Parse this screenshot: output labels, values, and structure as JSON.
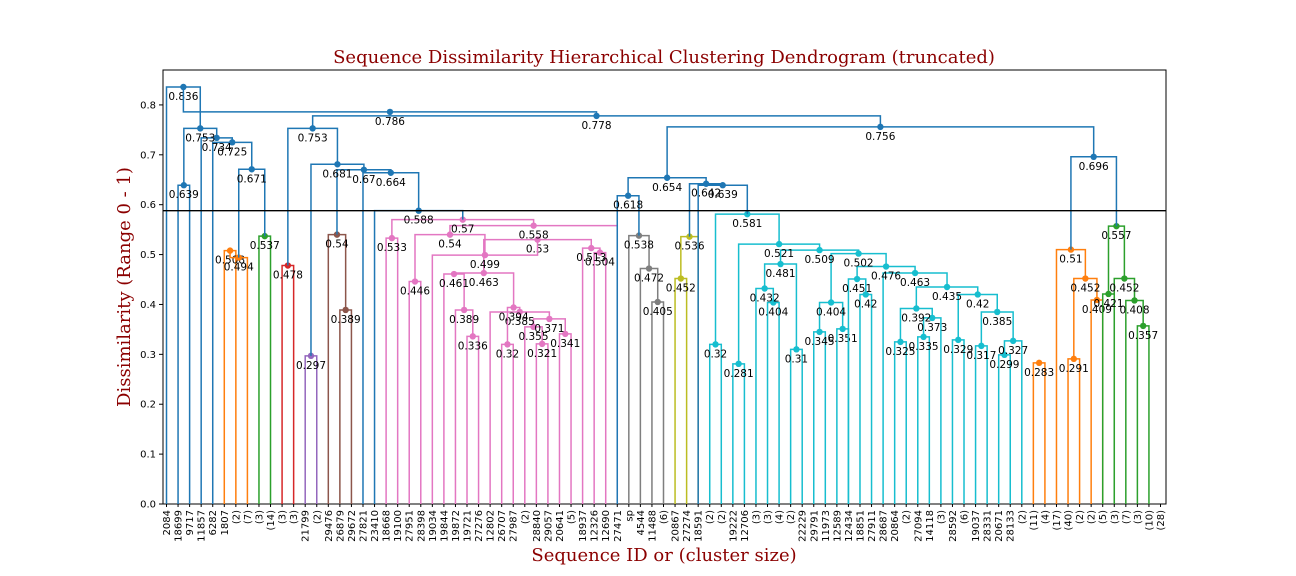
{
  "chart_data": {
    "type": "dendrogram",
    "title": "Sequence Dissimilarity Hierarchical Clustering Dendrogram (truncated)",
    "xlabel": "Sequence ID or (cluster size)",
    "ylabel": "Dissimilarity (Range 0 - 1)",
    "ylim": [
      0,
      0.87
    ],
    "yticks": [
      "0.0",
      "0.1",
      "0.2",
      "0.3",
      "0.4",
      "0.5",
      "0.6",
      "0.7",
      "0.8"
    ],
    "cut_line": 0.588,
    "leaves": [
      "2084",
      "18699",
      "9717",
      "11857",
      "6282",
      "1807",
      "(2)",
      "(7)",
      "(3)",
      "(14)",
      "(3)",
      "(3)",
      "21799",
      "(2)",
      "29476",
      "26879",
      "29672",
      "27821",
      "23410",
      "18668",
      "19100",
      "27951",
      "28398",
      "19034",
      "19844",
      "19872",
      "19721",
      "27276",
      "12802",
      "26707",
      "27987",
      "(2)",
      "28840",
      "29057",
      "20641",
      "(5)",
      "18937",
      "12326",
      "12690",
      "27471",
      "sp",
      "4544",
      "11488",
      "(6)",
      "20867",
      "27274",
      "18591",
      "(2)",
      "(2)",
      "19222",
      "12706",
      "(3)",
      "(3)",
      "(4)",
      "(2)",
      "22229",
      "29791",
      "11973",
      "12589",
      "12434",
      "18851",
      "27911",
      "28687",
      "20864",
      "(2)",
      "27094",
      "14118",
      "(3)",
      "28592",
      "(6)",
      "19037",
      "28331",
      "20671",
      "28133",
      "(2)",
      "(11)",
      "(4)",
      "(17)",
      "(40)",
      "(2)",
      "(2)",
      "(5)",
      "(3)",
      "(7)",
      "(3)",
      "(10)",
      "(28)"
    ],
    "colors": {
      "blue": "#1f77b4",
      "orange": "#ff7f0e",
      "green": "#2ca02c",
      "red": "#d62728",
      "purple": "#9467bd",
      "brown": "#8c564b",
      "pink": "#e377c2",
      "gray": "#7f7f7f",
      "olive": "#bcbd22",
      "cyan": "#17becf"
    },
    "merges": [
      [
        "L5",
        "L6",
        0.508,
        "orange",
        "A1"
      ],
      [
        "A1",
        "L7",
        0.494,
        "orange",
        "A2"
      ],
      [
        "L8",
        "L9",
        0.537,
        "green",
        "G1"
      ],
      [
        "A2",
        "G1",
        0.671,
        "blue",
        "B1"
      ],
      [
        "L4",
        "B1",
        0.725,
        "blue",
        "B2"
      ],
      [
        "L3",
        "B2",
        0.734,
        "blue",
        "B3"
      ],
      [
        "L1",
        "L2",
        0.639,
        "blue",
        "B4"
      ],
      [
        "B4",
        "B3",
        0.753,
        "blue",
        "B5"
      ],
      [
        "L0",
        "B5",
        0.836,
        "blue",
        "ROOT_L"
      ],
      [
        "L10",
        "L11",
        0.478,
        "red",
        "R1"
      ],
      [
        "L12",
        "L13",
        0.297,
        "purple",
        "P1"
      ],
      [
        "L15",
        "L16",
        0.389,
        "brown",
        "BR1"
      ],
      [
        "L14",
        "BR1",
        0.54,
        "brown",
        "BR2"
      ],
      [
        "L19",
        "L20",
        0.533,
        "pink",
        "K1"
      ],
      [
        "L21",
        "L22",
        0.446,
        "pink",
        "K2"
      ],
      [
        "L26",
        "L27",
        0.336,
        "pink",
        "K3"
      ],
      [
        "L25",
        "K3",
        0.389,
        "pink",
        "K4"
      ],
      [
        "L24",
        "K4",
        0.461,
        "pink",
        "K5"
      ],
      [
        "L29",
        "L30",
        0.32,
        "pink",
        "K6"
      ],
      [
        "L32",
        "L33",
        0.321,
        "pink",
        "K7"
      ],
      [
        "L31",
        "K7",
        0.355,
        "pink",
        "K8"
      ],
      [
        "L34",
        "L35",
        0.341,
        "pink",
        "K9"
      ],
      [
        "K8",
        "K9",
        0.371,
        "pink",
        "K10"
      ],
      [
        "L28",
        "K10",
        0.385,
        "pink",
        "K11"
      ],
      [
        "K6",
        "K11",
        0.394,
        "pink",
        "K12"
      ],
      [
        "K5",
        "K12",
        0.463,
        "pink",
        "K13"
      ],
      [
        "L37",
        "L38",
        0.504,
        "pink",
        "K14"
      ],
      [
        "L36",
        "K14",
        0.513,
        "pink",
        "K15"
      ],
      [
        "K13",
        "K15",
        0.53,
        "pink",
        "K16"
      ],
      [
        "L23",
        "K16",
        0.499,
        "pink",
        "K17"
      ],
      [
        "K2",
        "K17",
        0.54,
        "pink",
        "K18"
      ],
      [
        "K18",
        "L39",
        0.558,
        "pink",
        "K19"
      ],
      [
        "K1",
        "K19",
        0.57,
        "pink",
        "K20"
      ],
      [
        "L18",
        "K20",
        0.588,
        "blue",
        "C1"
      ],
      [
        "L17",
        "C1",
        0.664,
        "blue",
        "C2"
      ],
      [
        "BR2",
        "C2",
        0.67,
        "blue",
        "C3"
      ],
      [
        "P1",
        "C3",
        0.681,
        "blue",
        "C4"
      ],
      [
        "R1",
        "C4",
        0.753,
        "blue",
        "C5"
      ],
      [
        "L42",
        "L43",
        0.405,
        "gray",
        "GR1"
      ],
      [
        "L41",
        "GR1",
        0.472,
        "gray",
        "GR2"
      ],
      [
        "L40",
        "GR2",
        0.538,
        "gray",
        "GR3"
      ],
      [
        "L44",
        "L45",
        0.452,
        "olive",
        "O1"
      ],
      [
        "L46",
        "O1",
        0.536,
        "olive",
        "O2"
      ],
      [
        "L39b",
        "GR3",
        0.618,
        "blue",
        "D1"
      ],
      [
        "L47",
        "L48",
        0.32,
        "cyan",
        "Y1"
      ],
      [
        "L49",
        "L50",
        0.281,
        "cyan",
        "Y2"
      ],
      [
        "L52",
        "L53",
        0.404,
        "cyan",
        "Y3"
      ],
      [
        "L51",
        "Y3",
        0.432,
        "cyan",
        "Y4"
      ],
      [
        "L54",
        "L55",
        0.31,
        "cyan",
        "Y5"
      ],
      [
        "Y4",
        "Y5",
        0.481,
        "cyan",
        "Y6"
      ],
      [
        "L56",
        "L57",
        0.345,
        "cyan",
        "Y7"
      ],
      [
        "L58",
        "L59",
        0.351,
        "cyan",
        "Y8"
      ],
      [
        "Y7",
        "Y8",
        0.404,
        "cyan",
        "Y9"
      ],
      [
        "L60",
        "L61",
        0.42,
        "cyan",
        "Y10"
      ],
      [
        "L59b",
        "Y10",
        0.451,
        "cyan",
        "Y11"
      ],
      [
        "L63",
        "L64",
        0.325,
        "cyan",
        "Y12"
      ],
      [
        "L65",
        "L66",
        0.335,
        "cyan",
        "Y13"
      ],
      [
        "L67",
        "Y13",
        0.373,
        "cyan",
        "Y14"
      ],
      [
        "Y12",
        "Y14",
        0.392,
        "cyan",
        "Y15"
      ],
      [
        "L68",
        "L69",
        0.329,
        "cyan",
        "Y16"
      ],
      [
        "L70",
        "L71",
        0.317,
        "cyan",
        "Y17"
      ],
      [
        "L72",
        "L73",
        0.299,
        "cyan",
        "Y18"
      ],
      [
        "Y18",
        "L74",
        0.327,
        "cyan",
        "Y19"
      ],
      [
        "Y17",
        "Y19",
        0.385,
        "cyan",
        "Y20"
      ],
      [
        "Y16",
        "Y20",
        0.42,
        "cyan",
        "Y21"
      ],
      [
        "Y15",
        "Y21",
        0.435,
        "cyan",
        "Y22"
      ],
      [
        "L62",
        "Y22",
        0.463,
        "cyan",
        "Y23"
      ],
      [
        "Y11",
        "Y23",
        0.476,
        "cyan",
        "Y24"
      ],
      [
        "Y9",
        "Y24",
        0.502,
        "cyan",
        "Y25"
      ],
      [
        "Y6",
        "Y25",
        0.509,
        "cyan",
        "Y26"
      ],
      [
        "Y2",
        "Y26",
        0.521,
        "cyan",
        "Y27"
      ],
      [
        "Y1",
        "Y27",
        0.581,
        "cyan",
        "Y28"
      ],
      [
        "L46b",
        "Y28",
        0.639,
        "blue",
        "D2"
      ],
      [
        "O2",
        "D2",
        0.642,
        "blue",
        "D3"
      ],
      [
        "D1",
        "D3",
        0.654,
        "blue",
        "D4"
      ],
      [
        "L75",
        "L76",
        0.283,
        "orange",
        "F1"
      ],
      [
        "L78",
        "L79",
        0.291,
        "orange",
        "F2"
      ],
      [
        "L80",
        "L81",
        0.409,
        "orange",
        "F3"
      ],
      [
        "F2",
        "F3",
        0.452,
        "orange",
        "F4"
      ],
      [
        "L77",
        "F4",
        0.51,
        "orange",
        "F5"
      ],
      [
        "L84",
        "L85",
        0.357,
        "green",
        "H1"
      ],
      [
        "L83",
        "H1",
        0.408,
        "green",
        "H2"
      ],
      [
        "L82",
        "H2",
        0.452,
        "green",
        "H3"
      ],
      [
        "L81b",
        "L82b",
        0.421,
        "green",
        "H4"
      ],
      [
        "H4",
        "H3",
        0.557,
        "green",
        "H5"
      ],
      [
        "F5",
        "H5",
        0.696,
        "blue",
        "E1"
      ],
      [
        "D4",
        "E1",
        0.756,
        "blue",
        "E2"
      ],
      [
        "C5",
        "E2",
        0.778,
        "blue",
        "E3"
      ],
      [
        "ROOT_L",
        "E3",
        0.786,
        "blue",
        "ROOT"
      ]
    ],
    "heights": [
      "0.836",
      "0.786",
      "0.778",
      "0.756",
      "0.753",
      "0.734",
      "0.725",
      "0.671",
      "0.639",
      "0.508",
      "0.494",
      "0.537",
      "0.478",
      "0.297",
      "0.753",
      "0.681",
      "0.67",
      "0.664",
      "0.54",
      "0.389",
      "0.588",
      "0.57",
      "0.533",
      "0.558",
      "0.446",
      "0.54",
      "0.499",
      "0.461",
      "0.389",
      "0.336",
      "0.463",
      "0.394",
      "0.32",
      "0.355",
      "0.321",
      "0.385",
      "0.371",
      "0.341",
      "0.53",
      "0.513",
      "0.504",
      "0.654",
      "0.618",
      "0.538",
      "0.472",
      "0.405",
      "0.642",
      "0.639",
      "0.536",
      "0.452",
      "0.581",
      "0.521",
      "0.509",
      "0.502",
      "0.481",
      "0.432",
      "0.404",
      "0.32",
      "0.281",
      "0.31",
      "0.404",
      "0.345",
      "0.351",
      "0.451",
      "0.42",
      "0.476",
      "0.463",
      "0.435",
      "0.392",
      "0.325",
      "0.373",
      "0.335",
      "0.42",
      "0.329",
      "0.385",
      "0.317",
      "0.327",
      "0.299",
      "0.696",
      "0.51",
      "0.452",
      "0.409",
      "0.283",
      "0.291",
      "0.557",
      "0.452",
      "0.421",
      "0.408",
      "0.357"
    ]
  }
}
